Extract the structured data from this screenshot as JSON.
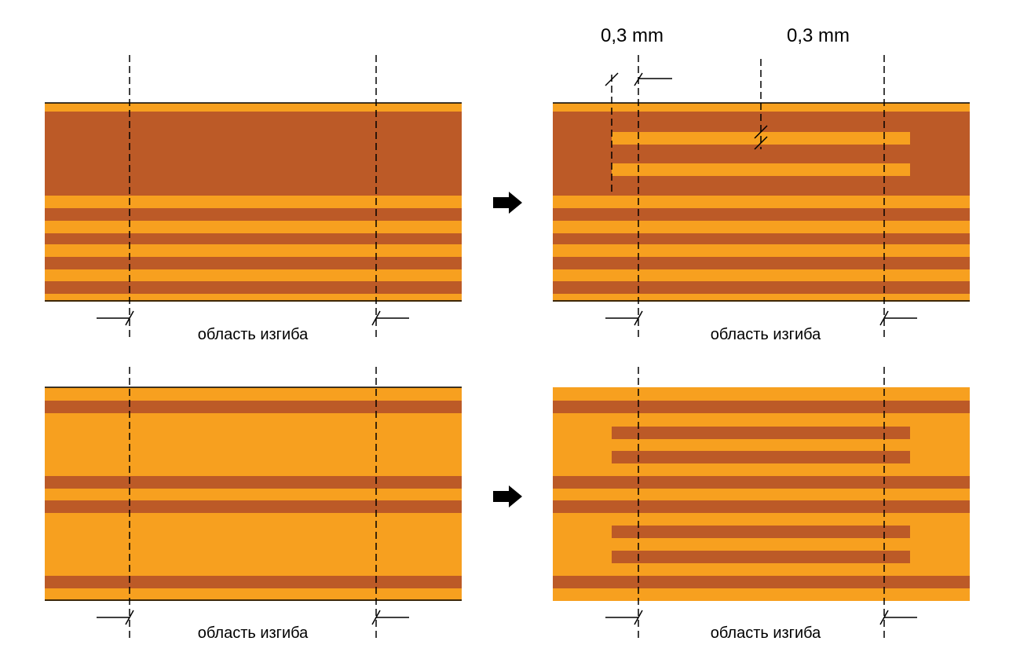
{
  "dimensions": [
    "0,3 mm",
    "0,3 mm"
  ],
  "labels": [
    "область изгиба",
    "область изгиба",
    "область изгиба",
    "область изгиба"
  ]
}
